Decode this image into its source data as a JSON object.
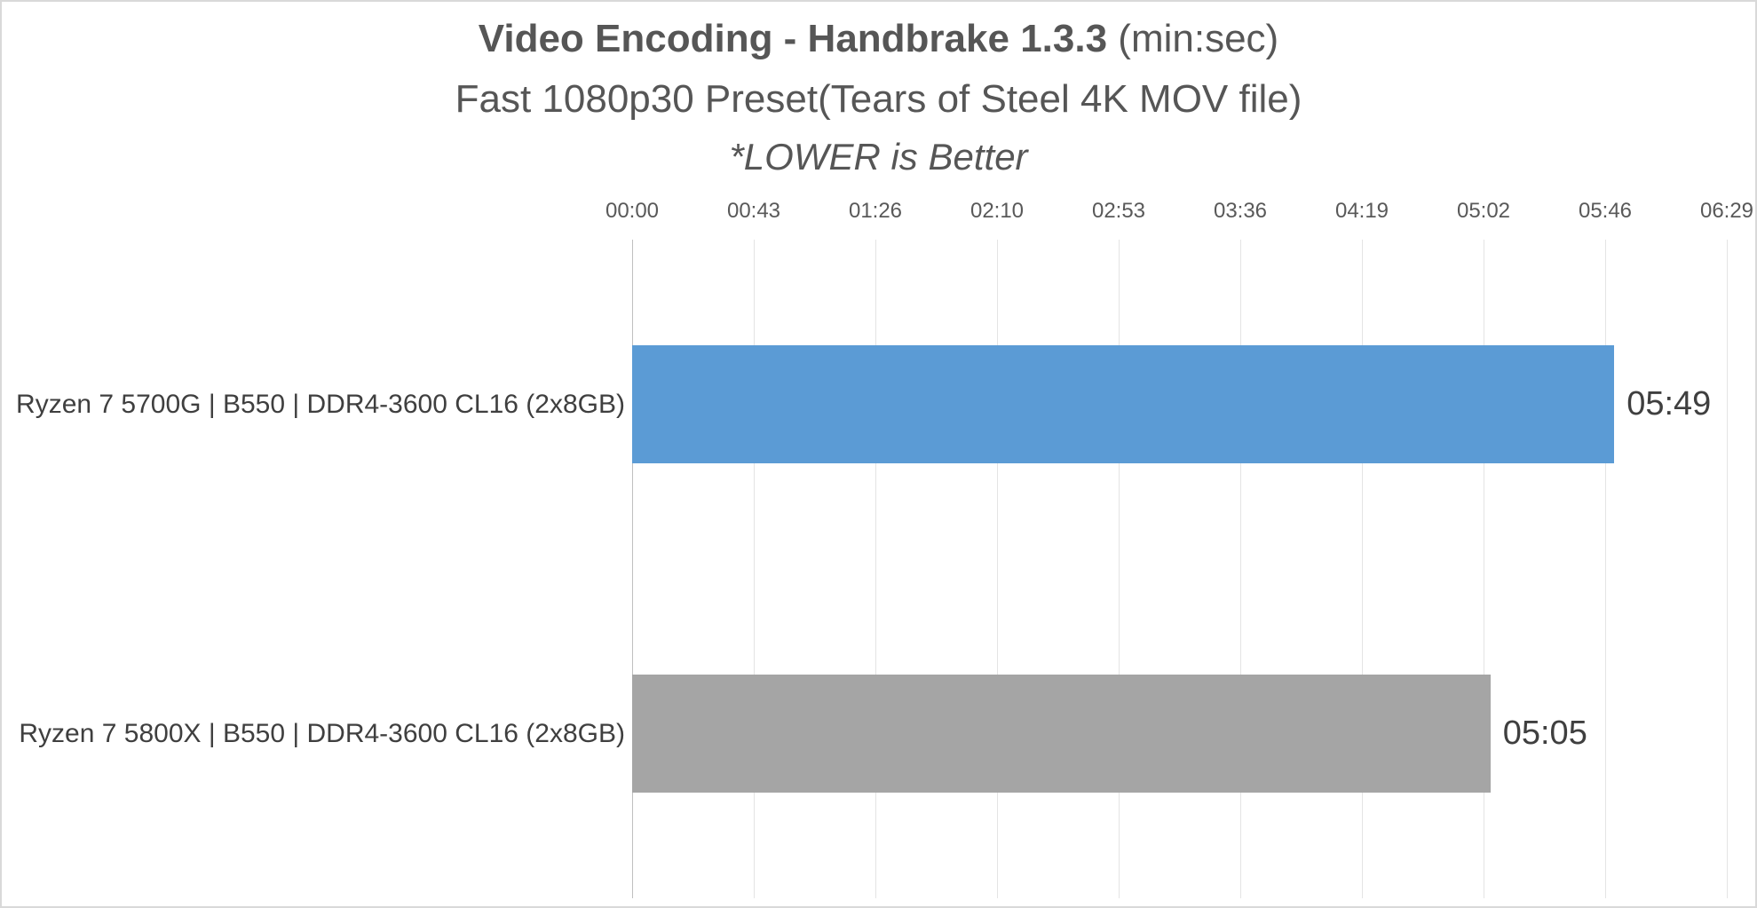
{
  "header": {
    "title_bold": "Video Encoding - Handbrake 1.3.3",
    "title_suffix": " (min:sec)",
    "subtitle": "Fast 1080p30 Preset(Tears of Steel 4K MOV file)",
    "note": "*LOWER is Better"
  },
  "chart_data": {
    "type": "bar",
    "orientation": "horizontal",
    "title": "Video Encoding - Handbrake 1.3.3 (min:sec)",
    "subtitle": "Fast 1080p30 Preset(Tears of Steel 4K MOV file)",
    "annotation": "*LOWER is Better",
    "value_format": "min:sec",
    "categories": [
      "Ryzen 7 5700G | B550 | DDR4-3600 CL16 (2x8GB)",
      "Ryzen 7 5800X | B550 | DDR4-3600 CL16 (2x8GB)"
    ],
    "values": [
      {
        "label": "05:49",
        "seconds": 349,
        "color": "#5B9BD5"
      },
      {
        "label": "05:05",
        "seconds": 305,
        "color": "#A5A5A5"
      }
    ],
    "x_axis": {
      "tick_labels": [
        "00:00",
        "00:43",
        "01:26",
        "02:10",
        "02:53",
        "03:36",
        "04:19",
        "05:02",
        "05:46",
        "06:29"
      ],
      "min_seconds": 0,
      "max_seconds": 389
    },
    "grid": true,
    "legend_position": "none",
    "colors": {
      "bar_blue": "#5B9BD5",
      "bar_gray": "#A5A5A5",
      "gridline": "#E4E4E4",
      "axis_line": "#BFBFBF",
      "title_text": "#565656",
      "tick_text": "#595959",
      "label_text": "#3F3F3F",
      "border": "#D9D9D9"
    }
  }
}
